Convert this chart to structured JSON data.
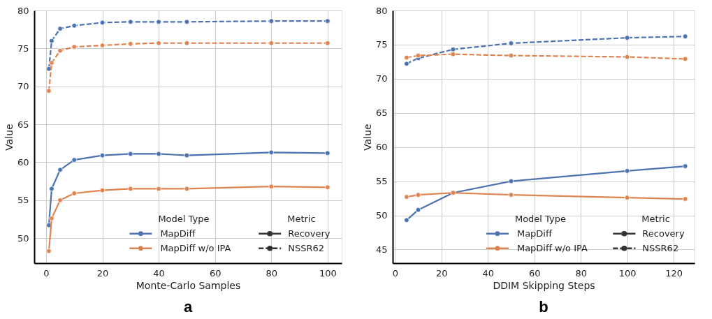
{
  "chart_data": [
    {
      "type": "line",
      "title": "a",
      "xlabel": "Monte-Carlo Samples",
      "ylabel": "Value",
      "legend_title": "Model Type",
      "legend": "bottom right",
      "grid": true,
      "marker": "circle",
      "annotations": [
        "Metric",
        "Recovery",
        "NSSR62"
      ],
      "xlim": [
        -4.2,
        105
      ],
      "xticks": [
        0,
        20,
        40,
        60,
        80,
        100
      ],
      "ylim": [
        46.7,
        80
      ],
      "yticks": [
        50,
        55,
        60,
        65,
        70,
        75,
        80
      ],
      "x": [
        1,
        2,
        5,
        10,
        20,
        30,
        40,
        50,
        80,
        100
      ],
      "series": [
        {
          "name": "MapDiff",
          "color": "#4c72b0",
          "line_style": "solid",
          "values": [
            51.7,
            56.5,
            59.0,
            60.3,
            60.9,
            61.1,
            61.1,
            60.9,
            61.3,
            61.2
          ]
        },
        {
          "name": "MapDiff w/o IPA",
          "color": "#dd8452",
          "line_style": "solid",
          "values": [
            48.3,
            52.6,
            55.0,
            55.9,
            56.3,
            56.5,
            56.5,
            56.5,
            56.8,
            56.7
          ]
        },
        {
          "color": "#4c72b0",
          "line_style": "dashed",
          "values": [
            72.3,
            76.0,
            77.6,
            78.0,
            78.4,
            78.5,
            78.5,
            78.5,
            78.6,
            78.6
          ]
        },
        {
          "color": "#dd8452",
          "line_style": "dashed",
          "values": [
            69.4,
            73.1,
            74.7,
            75.2,
            75.4,
            75.6,
            75.7,
            75.7,
            75.7,
            75.7
          ]
        }
      ]
    },
    {
      "type": "line",
      "title": "b",
      "xlabel": "DDIM Skipping Steps",
      "ylabel": "Value",
      "legend_title": "Model Type",
      "legend": "bottom right",
      "grid": true,
      "marker": "circle",
      "annotations": [
        "Metric",
        "Recovery",
        "NSSR62"
      ],
      "xlim": [
        -1,
        129
      ],
      "xticks": [
        0,
        20,
        40,
        60,
        80,
        100,
        120
      ],
      "ylim": [
        43,
        80
      ],
      "yticks": [
        45,
        50,
        55,
        60,
        65,
        70,
        75,
        80
      ],
      "x": [
        5,
        10,
        25,
        50,
        100,
        125
      ],
      "series": [
        {
          "name": "MapDiff",
          "color": "#4c72b0",
          "line_style": "solid",
          "values": [
            49.3,
            50.8,
            53.3,
            55.0,
            56.5,
            57.2
          ]
        },
        {
          "name": "MapDiff w/o IPA",
          "color": "#dd8452",
          "line_style": "solid",
          "values": [
            52.7,
            53.0,
            53.3,
            53.0,
            52.6,
            52.4
          ]
        },
        {
          "color": "#4c72b0",
          "line_style": "dashed",
          "values": [
            72.2,
            73.0,
            74.3,
            75.2,
            76.0,
            76.2
          ]
        },
        {
          "color": "#dd8452",
          "line_style": "dashed",
          "values": [
            73.1,
            73.4,
            73.6,
            73.4,
            73.2,
            72.9
          ]
        }
      ]
    }
  ]
}
